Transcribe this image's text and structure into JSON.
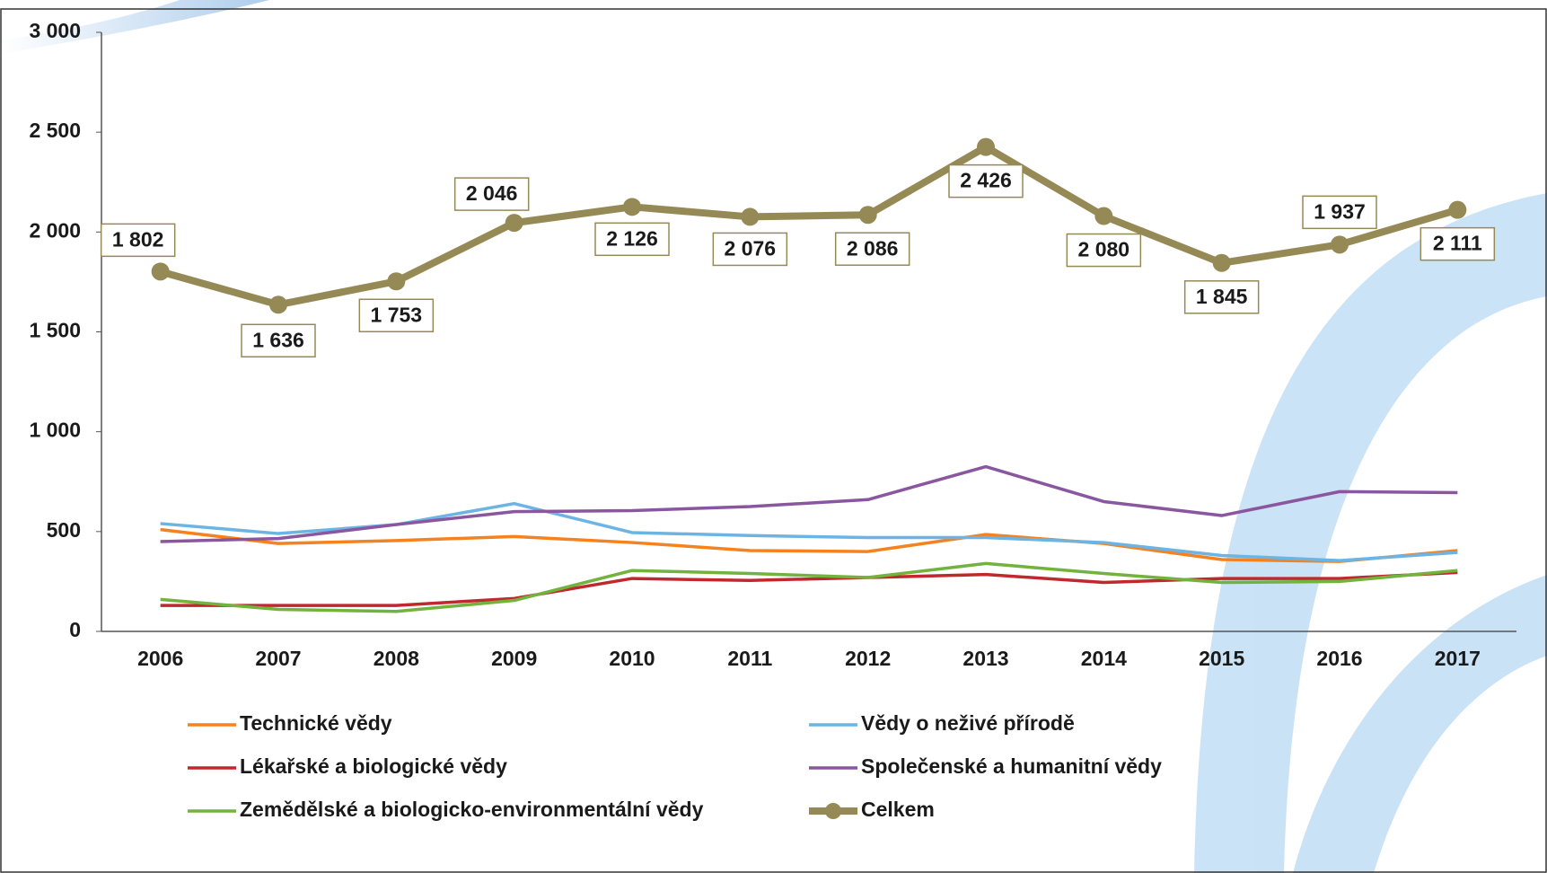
{
  "chart_data": {
    "type": "line",
    "categories": [
      "2006",
      "2007",
      "2008",
      "2009",
      "2010",
      "2011",
      "2012",
      "2013",
      "2014",
      "2015",
      "2016",
      "2017"
    ],
    "ylim": [
      0,
      3000
    ],
    "yticks": [
      0,
      500,
      {
        "value": 1000,
        "label": "1 000"
      },
      {
        "value": 1500,
        "label": "1 500"
      },
      {
        "value": 2000,
        "label": "2 000"
      },
      {
        "value": 2500,
        "label": "2 500"
      },
      {
        "value": 3000,
        "label": "3 000"
      }
    ],
    "series": [
      {
        "name": "Technické vědy",
        "color": "#f5821f",
        "values": [
          510,
          440,
          455,
          475,
          445,
          405,
          400,
          485,
          440,
          360,
          350,
          405
        ]
      },
      {
        "name": "Vědy o neživé přírodě",
        "color": "#6cb4e4",
        "values": [
          540,
          490,
          535,
          640,
          495,
          480,
          470,
          470,
          445,
          380,
          355,
          395
        ]
      },
      {
        "name": "Lékařské a biologické vědy",
        "color": "#c0282d",
        "values": [
          130,
          130,
          130,
          165,
          265,
          255,
          270,
          285,
          245,
          265,
          265,
          295
        ]
      },
      {
        "name": "Společenské a humanitní vědy",
        "color": "#8a56a0",
        "values": [
          450,
          465,
          535,
          600,
          605,
          625,
          660,
          825,
          650,
          580,
          700,
          695
        ]
      },
      {
        "name": "Zemědělské a biologicko-environmentální vědy",
        "color": "#72b33e",
        "values": [
          160,
          110,
          100,
          155,
          305,
          290,
          270,
          340,
          290,
          245,
          250,
          305
        ]
      },
      {
        "name": "Celkem",
        "color": "#958a56",
        "values": [
          1802,
          1636,
          1753,
          2046,
          2126,
          2076,
          2086,
          2426,
          2080,
          1845,
          1937,
          2111
        ],
        "value_labels": [
          "1 802",
          "1 636",
          "1 753",
          "2 046",
          "2 126",
          "2 076",
          "2 086",
          "2 426",
          "2 080",
          "1 845",
          "1 937",
          "2 111"
        ],
        "markers": true
      }
    ]
  }
}
